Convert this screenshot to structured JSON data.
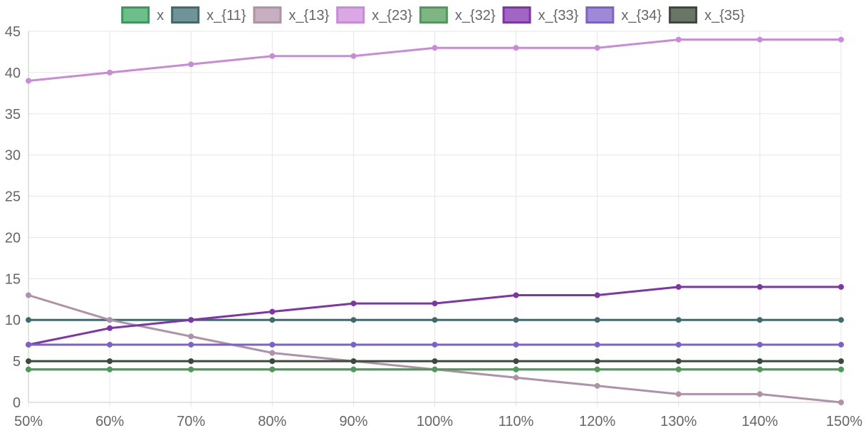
{
  "chart_data": {
    "type": "line",
    "x": [
      "50%",
      "60%",
      "70%",
      "80%",
      "90%",
      "100%",
      "110%",
      "120%",
      "130%",
      "140%",
      "150%"
    ],
    "ylim": [
      0,
      45
    ],
    "yticks": [
      0,
      5,
      10,
      15,
      20,
      25,
      30,
      35,
      40,
      45
    ],
    "grid": true,
    "legend": "top-center",
    "series": [
      {
        "name": "x",
        "color": "#3a9a5b",
        "fill": "#6cbf8a",
        "values": [
          4,
          4,
          4,
          4,
          4,
          4,
          4,
          4,
          4,
          4,
          4
        ]
      },
      {
        "name": "x_{11}",
        "color": "#3f6b6e",
        "fill": "#6f9397",
        "values": [
          10,
          10,
          10,
          10,
          10,
          10,
          10,
          10,
          10,
          10,
          10
        ]
      },
      {
        "name": "x_{13}",
        "color": "#ad92a8",
        "fill": "#c7aec1",
        "values": [
          13,
          10,
          8,
          6,
          5,
          4,
          3,
          2,
          1,
          1,
          0
        ]
      },
      {
        "name": "x_{23}",
        "color": "#c98ad8",
        "fill": "#dca7e5",
        "values": [
          39,
          40,
          41,
          42,
          42,
          43,
          43,
          43,
          44,
          44,
          44
        ]
      },
      {
        "name": "x_{32}",
        "color": "#4f9a58",
        "fill": "#7fb585",
        "values": [
          4,
          4,
          4,
          4,
          4,
          4,
          4,
          4,
          4,
          4,
          4
        ]
      },
      {
        "name": "x_{33}",
        "color": "#7d35a8",
        "fill": "#a066c2",
        "values": [
          7,
          9,
          10,
          11,
          12,
          12,
          13,
          13,
          14,
          14,
          14
        ]
      },
      {
        "name": "x_{34}",
        "color": "#7b62c9",
        "fill": "#9d89d6",
        "values": [
          7,
          7,
          7,
          7,
          7,
          7,
          7,
          7,
          7,
          7,
          7
        ]
      },
      {
        "name": "x_{35}",
        "color": "#3c4a3d",
        "fill": "#6a7566",
        "values": [
          5,
          5,
          5,
          5,
          5,
          5,
          5,
          5,
          5,
          5,
          5
        ]
      }
    ]
  }
}
